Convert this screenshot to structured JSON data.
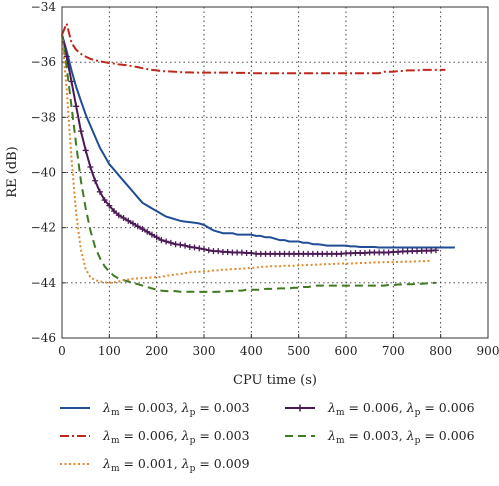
{
  "chart_data": {
    "type": "line",
    "xlabel": "CPU time (s)",
    "ylabel": "RE (dB)",
    "xlim": [
      0,
      900
    ],
    "ylim": [
      -46,
      -34
    ],
    "x_ticks": [
      0,
      100,
      200,
      300,
      400,
      500,
      600,
      700,
      800,
      900
    ],
    "y_ticks": [
      -34,
      -36,
      -38,
      -40,
      -42,
      -44,
      -46
    ],
    "x_tick_labels": [
      "0",
      "100",
      "200",
      "300",
      "400",
      "500",
      "600",
      "700",
      "800",
      "900"
    ],
    "y_tick_labels": [
      "−34",
      "−36",
      "−38",
      "−40",
      "−42",
      "−44",
      "−46"
    ],
    "grid": true,
    "legend_placement": "below",
    "series": [
      {
        "name": "λ_m = 0.003, λ_p = 0.003",
        "legend_label": {
          "a": "λ",
          "a_sub": "m",
          "mid": " = 0.003, ",
          "b": "λ",
          "b_sub": "p",
          "end": " = 0.003"
        },
        "color": "#1f4e96",
        "style": "solid",
        "marker": "none",
        "x": [
          0,
          10,
          20,
          30,
          40,
          50,
          60,
          70,
          80,
          90,
          100,
          110,
          120,
          130,
          140,
          150,
          160,
          170,
          180,
          190,
          200,
          210,
          220,
          230,
          240,
          250,
          260,
          270,
          280,
          290,
          300,
          310,
          320,
          330,
          340,
          350,
          360,
          370,
          380,
          390,
          400,
          410,
          420,
          430,
          440,
          450,
          460,
          470,
          480,
          490,
          500,
          510,
          520,
          530,
          540,
          550,
          560,
          570,
          580,
          590,
          600,
          610,
          620,
          630,
          640,
          650,
          660,
          670,
          680,
          690,
          700,
          710,
          720,
          730,
          740,
          750,
          760,
          770,
          780,
          790,
          800,
          810,
          820,
          830
        ],
        "y": [
          -35.0,
          -35.6,
          -36.3,
          -36.9,
          -37.4,
          -37.9,
          -38.3,
          -38.7,
          -39.1,
          -39.4,
          -39.7,
          -39.9,
          -40.1,
          -40.3,
          -40.5,
          -40.7,
          -40.9,
          -41.1,
          -41.2,
          -41.3,
          -41.4,
          -41.5,
          -41.6,
          -41.65,
          -41.7,
          -41.75,
          -41.78,
          -41.8,
          -41.82,
          -41.85,
          -41.9,
          -42.0,
          -42.1,
          -42.15,
          -42.2,
          -42.2,
          -42.2,
          -42.25,
          -42.25,
          -42.25,
          -42.25,
          -42.3,
          -42.3,
          -42.35,
          -42.35,
          -42.4,
          -42.45,
          -42.45,
          -42.5,
          -42.5,
          -42.5,
          -42.55,
          -42.55,
          -42.6,
          -42.6,
          -42.62,
          -42.65,
          -42.65,
          -42.65,
          -42.65,
          -42.65,
          -42.68,
          -42.68,
          -42.7,
          -42.7,
          -42.7,
          -42.7,
          -42.72,
          -42.72,
          -42.72,
          -42.72,
          -42.72,
          -42.72,
          -42.72,
          -42.72,
          -42.72,
          -42.72,
          -42.72,
          -42.72,
          -42.72,
          -42.72,
          -42.72,
          -42.72,
          -42.72
        ]
      },
      {
        "name": "λ_m = 0.006, λ_p = 0.006",
        "legend_label": {
          "a": "λ",
          "a_sub": "m",
          "mid": " = 0.006, ",
          "b": "λ",
          "b_sub": "p",
          "end": " = 0.006"
        },
        "color": "#4b1a56",
        "style": "solid",
        "marker": "plus",
        "x": [
          0,
          10,
          20,
          30,
          40,
          50,
          60,
          70,
          80,
          90,
          100,
          110,
          120,
          130,
          140,
          150,
          160,
          170,
          180,
          190,
          200,
          210,
          220,
          230,
          240,
          250,
          260,
          270,
          280,
          290,
          300,
          310,
          320,
          330,
          340,
          350,
          360,
          370,
          380,
          390,
          400,
          410,
          420,
          430,
          440,
          450,
          460,
          470,
          480,
          490,
          500,
          510,
          520,
          530,
          540,
          550,
          560,
          570,
          580,
          590,
          600,
          610,
          620,
          630,
          640,
          650,
          660,
          670,
          680,
          690,
          700,
          710,
          720,
          730,
          740,
          750,
          760,
          770,
          780,
          790
        ],
        "y": [
          -35.0,
          -35.8,
          -36.7,
          -37.6,
          -38.5,
          -39.2,
          -39.8,
          -40.3,
          -40.7,
          -41.0,
          -41.2,
          -41.4,
          -41.55,
          -41.65,
          -41.75,
          -41.85,
          -41.95,
          -42.05,
          -42.15,
          -42.25,
          -42.35,
          -42.45,
          -42.5,
          -42.55,
          -42.6,
          -42.62,
          -42.65,
          -42.7,
          -42.72,
          -42.75,
          -42.78,
          -42.82,
          -42.85,
          -42.85,
          -42.88,
          -42.88,
          -42.9,
          -42.9,
          -42.9,
          -42.92,
          -42.92,
          -42.95,
          -42.95,
          -42.95,
          -42.95,
          -42.95,
          -42.95,
          -42.95,
          -42.95,
          -42.95,
          -42.95,
          -42.95,
          -42.95,
          -42.95,
          -42.95,
          -42.95,
          -42.95,
          -42.95,
          -42.95,
          -42.95,
          -42.93,
          -42.93,
          -42.92,
          -42.92,
          -42.92,
          -42.9,
          -42.9,
          -42.9,
          -42.9,
          -42.9,
          -42.88,
          -42.88,
          -42.86,
          -42.86,
          -42.85,
          -42.85,
          -42.84,
          -42.84,
          -42.83,
          -42.82
        ]
      },
      {
        "name": "λ_m = 0.006, λ_p = 0.003",
        "legend_label": {
          "a": "λ",
          "a_sub": "m",
          "mid": " = 0.006, ",
          "b": "λ",
          "b_sub": "p",
          "end": " = 0.003"
        },
        "color": "#c0271b",
        "style": "dashdot",
        "marker": "none",
        "x": [
          0,
          10,
          20,
          30,
          40,
          50,
          60,
          70,
          80,
          90,
          100,
          110,
          120,
          130,
          140,
          150,
          160,
          170,
          180,
          190,
          200,
          210,
          220,
          230,
          240,
          250,
          260,
          270,
          280,
          290,
          300,
          310,
          320,
          330,
          340,
          350,
          360,
          370,
          380,
          390,
          400,
          410,
          420,
          430,
          440,
          450,
          460,
          470,
          480,
          490,
          500,
          510,
          520,
          530,
          540,
          550,
          560,
          570,
          580,
          590,
          600,
          610,
          620,
          630,
          640,
          650,
          660,
          670,
          680,
          690,
          700,
          710,
          720,
          730,
          740,
          750,
          760,
          770,
          780,
          790,
          800,
          810
        ],
        "y": [
          -35.0,
          -34.6,
          -35.3,
          -35.55,
          -35.7,
          -35.8,
          -35.88,
          -35.93,
          -35.97,
          -36.0,
          -36.03,
          -36.05,
          -36.08,
          -36.1,
          -36.12,
          -36.15,
          -36.18,
          -36.22,
          -36.25,
          -36.28,
          -36.3,
          -36.32,
          -36.33,
          -36.34,
          -36.35,
          -36.36,
          -36.37,
          -36.37,
          -36.38,
          -36.38,
          -36.38,
          -36.38,
          -36.38,
          -36.38,
          -36.38,
          -36.38,
          -36.38,
          -36.39,
          -36.39,
          -36.39,
          -36.4,
          -36.4,
          -36.4,
          -36.4,
          -36.4,
          -36.4,
          -36.4,
          -36.4,
          -36.4,
          -36.4,
          -36.4,
          -36.4,
          -36.4,
          -36.4,
          -36.4,
          -36.4,
          -36.4,
          -36.4,
          -36.4,
          -36.4,
          -36.4,
          -36.4,
          -36.4,
          -36.4,
          -36.4,
          -36.4,
          -36.4,
          -36.4,
          -36.35,
          -36.35,
          -36.35,
          -36.32,
          -36.32,
          -36.3,
          -36.3,
          -36.3,
          -36.28,
          -36.28,
          -36.28,
          -36.28,
          -36.28,
          -36.28
        ]
      },
      {
        "name": "λ_m = 0.003, λ_p = 0.006",
        "legend_label": {
          "a": "λ",
          "a_sub": "m",
          "mid": " = 0.003, ",
          "b": "λ",
          "b_sub": "p",
          "end": " = 0.006"
        },
        "color": "#3f7a23",
        "style": "dashed",
        "marker": "none",
        "x": [
          0,
          10,
          20,
          30,
          40,
          50,
          60,
          70,
          80,
          90,
          100,
          110,
          120,
          130,
          140,
          150,
          160,
          170,
          180,
          190,
          200,
          210,
          220,
          230,
          240,
          250,
          260,
          270,
          280,
          290,
          300,
          310,
          320,
          330,
          340,
          350,
          360,
          370,
          380,
          390,
          400,
          410,
          420,
          430,
          440,
          450,
          460,
          470,
          480,
          490,
          500,
          510,
          520,
          530,
          540,
          550,
          560,
          570,
          580,
          590,
          600,
          610,
          620,
          630,
          640,
          650,
          660,
          670,
          680,
          690,
          700,
          710,
          720,
          730,
          740,
          750,
          760,
          770,
          780,
          790
        ],
        "y": [
          -35.0,
          -36.2,
          -37.6,
          -39.0,
          -40.3,
          -41.3,
          -42.1,
          -42.7,
          -43.1,
          -43.4,
          -43.6,
          -43.75,
          -43.85,
          -43.9,
          -43.95,
          -44.0,
          -44.05,
          -44.1,
          -44.15,
          -44.2,
          -44.25,
          -44.28,
          -44.3,
          -44.3,
          -44.3,
          -44.32,
          -44.32,
          -44.32,
          -44.32,
          -44.33,
          -44.33,
          -44.33,
          -44.33,
          -44.32,
          -44.32,
          -44.3,
          -44.3,
          -44.28,
          -44.28,
          -44.25,
          -44.25,
          -44.25,
          -44.25,
          -44.22,
          -44.22,
          -44.22,
          -44.2,
          -44.2,
          -44.2,
          -44.18,
          -44.18,
          -44.15,
          -44.15,
          -44.12,
          -44.1,
          -44.1,
          -44.1,
          -44.1,
          -44.1,
          -44.1,
          -44.1,
          -44.1,
          -44.1,
          -44.1,
          -44.1,
          -44.1,
          -44.1,
          -44.1,
          -44.1,
          -44.08,
          -44.08,
          -44.06,
          -44.06,
          -44.05,
          -44.05,
          -44.04,
          -44.03,
          -44.02,
          -44.01,
          -44.0
        ]
      },
      {
        "name": "λ_m = 0.001, λ_p = 0.009",
        "legend_label": {
          "a": "λ",
          "a_sub": "m",
          "mid": " = 0.001, ",
          "b": "λ",
          "b_sub": "p",
          "end": " = 0.009"
        },
        "color": "#e08a2c",
        "style": "dotted",
        "marker": "none",
        "x": [
          0,
          10,
          20,
          30,
          40,
          50,
          60,
          70,
          80,
          90,
          100,
          110,
          120,
          130,
          140,
          150,
          160,
          170,
          180,
          190,
          200,
          210,
          220,
          230,
          240,
          250,
          260,
          270,
          280,
          290,
          300,
          310,
          320,
          330,
          340,
          350,
          360,
          370,
          380,
          390,
          400,
          410,
          420,
          430,
          440,
          450,
          460,
          470,
          480,
          490,
          500,
          510,
          520,
          530,
          540,
          550,
          560,
          570,
          580,
          590,
          600,
          610,
          620,
          630,
          640,
          650,
          660,
          670,
          680,
          690,
          700,
          710,
          720,
          730,
          740,
          750,
          760,
          770,
          780
        ],
        "y": [
          -35.0,
          -37.0,
          -39.5,
          -41.5,
          -42.8,
          -43.5,
          -43.8,
          -43.9,
          -43.95,
          -43.98,
          -44.0,
          -43.98,
          -43.95,
          -43.9,
          -43.88,
          -43.85,
          -43.84,
          -43.83,
          -43.82,
          -43.8,
          -43.8,
          -43.78,
          -43.75,
          -43.72,
          -43.7,
          -43.68,
          -43.65,
          -43.62,
          -43.6,
          -43.6,
          -43.58,
          -43.58,
          -43.55,
          -43.55,
          -43.52,
          -43.52,
          -43.5,
          -43.5,
          -43.48,
          -43.48,
          -43.45,
          -43.45,
          -43.42,
          -43.42,
          -43.4,
          -43.4,
          -43.4,
          -43.38,
          -43.38,
          -43.38,
          -43.36,
          -43.36,
          -43.35,
          -43.35,
          -43.34,
          -43.33,
          -43.32,
          -43.32,
          -43.31,
          -43.3,
          -43.3,
          -43.3,
          -43.29,
          -43.28,
          -43.28,
          -43.27,
          -43.26,
          -43.26,
          -43.25,
          -43.25,
          -43.25,
          -43.24,
          -43.24,
          -43.23,
          -43.23,
          -43.22,
          -43.22,
          -43.21,
          -43.2
        ]
      }
    ],
    "legend_order": [
      0,
      1,
      2,
      3,
      4
    ]
  }
}
